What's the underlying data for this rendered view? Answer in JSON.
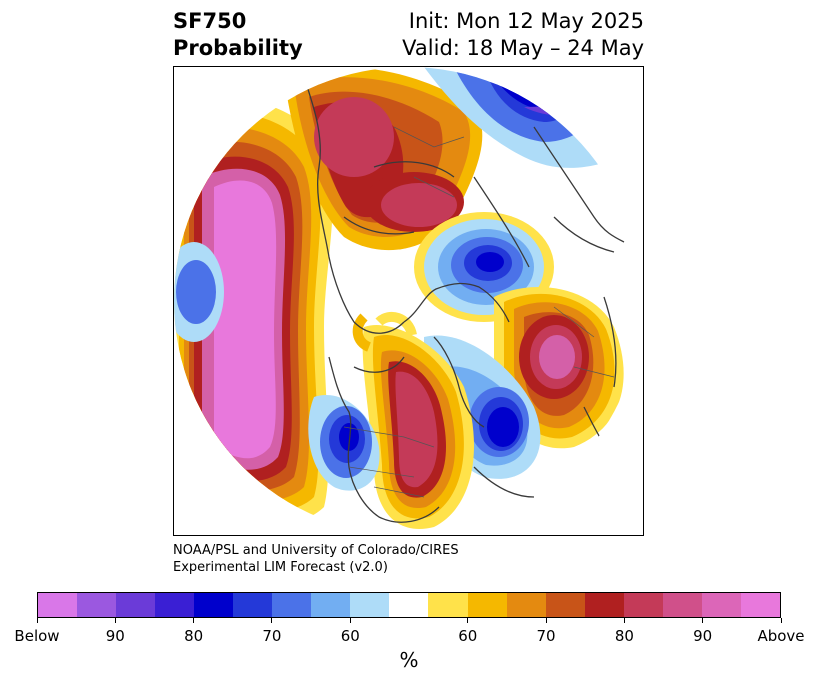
{
  "header": {
    "variable": "SF750",
    "product": "Probability",
    "init": "Init: Mon 12 May 2025",
    "valid": "Valid: 18 May – 24 May"
  },
  "credit": {
    "line1": "NOAA/PSL and University of Colorado/CIRES",
    "line2": "Experimental LIM Forecast (v2.0)"
  },
  "colorbar": {
    "unit": "%",
    "colors": [
      "#d977e8",
      "#9b58e0",
      "#6b3bd8",
      "#3a1fd4",
      "#0000cc",
      "#2439d8",
      "#4b72e8",
      "#72aef2",
      "#aedcf8",
      "#ffffff",
      "#ffe24a",
      "#f5b800",
      "#e48a10",
      "#c85418",
      "#b02020",
      "#c43a58",
      "#d0508a",
      "#dc66b8",
      "#e878dc"
    ],
    "labels": [
      "Below",
      "90",
      "80",
      "70",
      "60",
      "60",
      "70",
      "80",
      "90",
      "Above"
    ]
  },
  "map": {
    "projection": "north-polar-stereographic",
    "palette": {
      "above_max": "#e878dc",
      "above_90": "#d460a8",
      "above_80": "#c43a58",
      "above_75": "#b02020",
      "above_70": "#c85418",
      "above_65": "#e48a10",
      "above_60": "#f5b800",
      "above_55": "#ffe24a",
      "below_60": "#aedcf8",
      "below_65": "#72aef2",
      "below_70": "#4b72e8",
      "below_75": "#2439d8",
      "below_80": "#0000cc",
      "below_90": "#6b3bd8"
    }
  }
}
